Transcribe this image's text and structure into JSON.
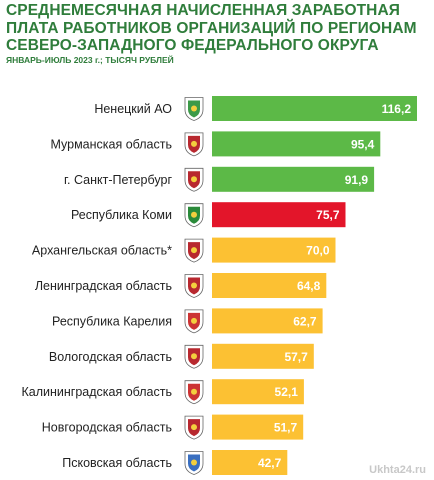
{
  "chart_data": {
    "type": "bar",
    "orientation": "horizontal",
    "title": "СРЕДНЕМЕСЯЧНАЯ НАЧИСЛЕННАЯ ЗАРАБОТНАЯ ПЛАТА РАБОТНИКОВ ОРГАНИЗАЦИЙ ПО РЕГИОНАМ СЕВЕРО-ЗАПАДНОГО ФЕДЕРАЛЬНОГО ОКРУГА",
    "subtitle": "ЯНВАРЬ-ИЮЛЬ 2023 г.; ТЫСЯЧ РУБЛЕЙ",
    "categories": [
      "Ненецкий АО",
      "Мурманская область",
      "г. Санкт-Петербург",
      "Республика Коми",
      "Архангельская область*",
      "Ленинградская область",
      "Республика Карелия",
      "Вологодская область",
      "Калининградская область",
      "Новгородская область",
      "Псковская область"
    ],
    "values": [
      116.2,
      95.4,
      91.9,
      75.7,
      70.0,
      64.8,
      62.7,
      57.7,
      52.1,
      51.7,
      42.7
    ],
    "value_labels": [
      "116,2",
      "95,4",
      "91,9",
      "75,7",
      "70,0",
      "64,8",
      "62,7",
      "57,7",
      "52,1",
      "51,7",
      "42,7"
    ],
    "bar_colors": [
      "#5cb947",
      "#5cb947",
      "#5cb947",
      "#e3152a",
      "#fcc133",
      "#fcc133",
      "#fcc133",
      "#fcc133",
      "#fcc133",
      "#fcc133",
      "#fcc133"
    ],
    "emblem_icons": [
      "nenets-emblem-icon",
      "murmansk-emblem-icon",
      "spb-emblem-icon",
      "komi-emblem-icon",
      "arkhangelsk-emblem-icon",
      "leningrad-emblem-icon",
      "karelia-emblem-icon",
      "vologda-emblem-icon",
      "kaliningrad-emblem-icon",
      "novgorod-emblem-icon",
      "pskov-emblem-icon"
    ],
    "xlim": [
      0,
      116.2
    ],
    "grid": false,
    "legend": "none"
  },
  "colors": {
    "title": "#2f7d3b",
    "label_text": "#222222",
    "value_text": "#ffffff"
  },
  "watermark": "Ukhta24.ru"
}
